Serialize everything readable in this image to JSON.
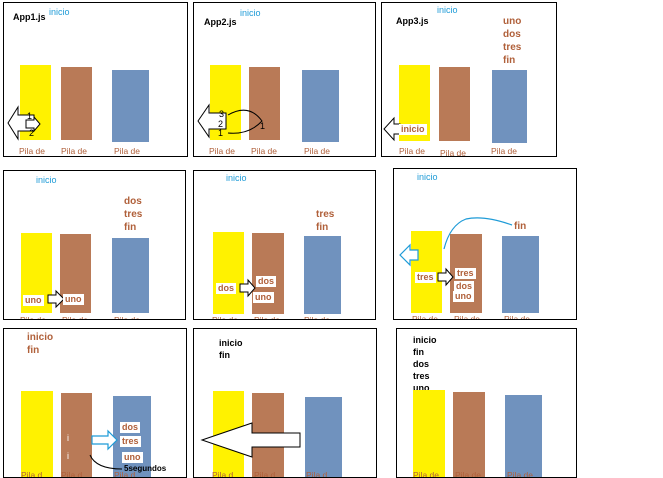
{
  "labels": {
    "procesos": "Pila de\nProcesos",
    "subproceso": "Pila de\nSubproceso",
    "subproceso_alt": "Pila de\nSuboroceso",
    "callbacks": "Pila de\ncallbacks",
    "pila_de": "Pila de",
    "pila_cut": "Pila d"
  },
  "p1": {
    "title": "App1.js",
    "inicio": "inicio",
    "n1": "1",
    "n2": "2"
  },
  "p2": {
    "title": "App2.js",
    "inicio": "inicio",
    "n1": "1",
    "n2": "2",
    "n3": "3",
    "n1b": "1"
  },
  "p3": {
    "title": "App3.js",
    "inicio": "inicio",
    "queue": "uno\ndos\ntres\nfin",
    "chip": "inicio"
  },
  "p4": {
    "inicio": "inicio",
    "queue": "dos\ntres\nfin",
    "chip1": "uno",
    "chip2": "uno"
  },
  "p5": {
    "inicio": "inicio",
    "queue": "tres\nfin",
    "chip1": "dos",
    "chip2": "dos",
    "chip3": "uno"
  },
  "p6": {
    "inicio": "inicio",
    "fin": "fin",
    "chip1": "tres",
    "chip2": "tres",
    "chip3": "dos",
    "chip4": "uno"
  },
  "p7": {
    "queue": "inicio\nfin",
    "chip1": "dos",
    "chip2": "tres",
    "chip3": "uno",
    "note": "5segundos",
    "mark1": "i",
    "mark2": "i"
  },
  "p8": {
    "queue": "inicio\nfin"
  },
  "p9": {
    "queue": "inicio\nfin\ndos\ntres\nuno"
  }
}
